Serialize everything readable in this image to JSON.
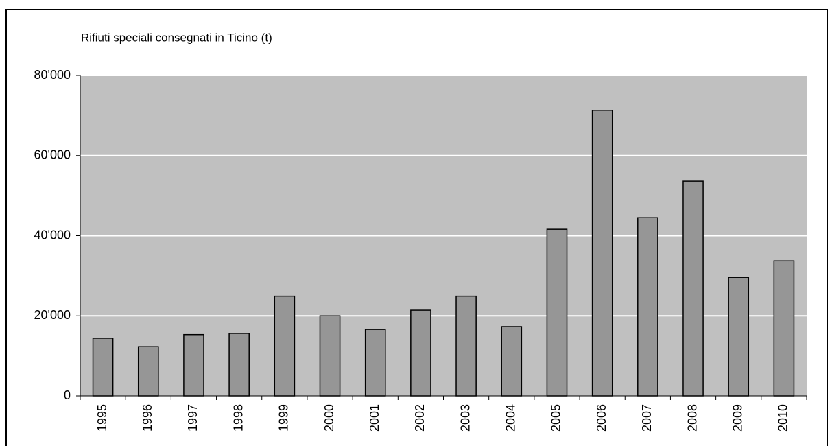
{
  "chart_data": {
    "type": "bar",
    "y_axis_label": "Rifiuti speciali consegnati in Ticino (t)",
    "categories": [
      "1995",
      "1996",
      "1997",
      "1998",
      "1999",
      "2000",
      "2001",
      "2002",
      "2003",
      "2004",
      "2005",
      "2006",
      "2007",
      "2008",
      "2009",
      "2010"
    ],
    "values": [
      14400,
      12300,
      15300,
      15600,
      24900,
      20000,
      16600,
      21400,
      24900,
      17300,
      41600,
      71300,
      44500,
      53600,
      29600,
      33700
    ],
    "color": "#969696",
    "ylim": [
      0,
      80000
    ],
    "yticks": [
      0,
      {
        "value": 20000,
        "label": "20'000"
      },
      {
        "value": 40000,
        "label": "40'000"
      },
      {
        "value": 60000,
        "label": "60'000"
      },
      {
        "value": 80000,
        "label": "80'000"
      }
    ],
    "grid": true
  }
}
